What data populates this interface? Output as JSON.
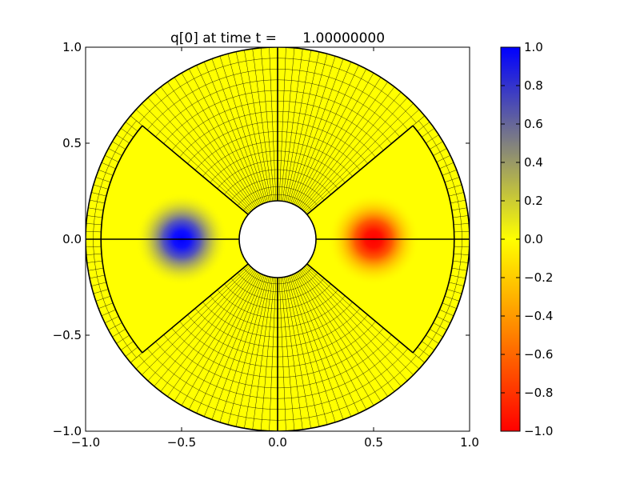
{
  "figure": {
    "title": "q[0] at time t =      1.00000000"
  },
  "chart_data": {
    "type": "heatmap",
    "title": "q[0] at time t =      1.00000000",
    "xlabel": "",
    "ylabel": "",
    "xlim": [
      -1.0,
      1.0
    ],
    "ylim": [
      -1.0,
      1.0
    ],
    "xticks": [
      -1.0,
      -0.5,
      0.0,
      0.5,
      1.0
    ],
    "yticks": [
      -1.0,
      -0.5,
      0.0,
      0.5,
      1.0
    ],
    "xtick_labels": [
      "−1.0",
      "−0.5",
      "0.0",
      "0.5",
      "1.0"
    ],
    "ytick_labels": [
      "−1.0",
      "−0.5",
      "0.0",
      "0.5",
      "1.0"
    ],
    "grid": false,
    "domain": {
      "shape": "annulus",
      "inner_radius": 0.2,
      "outer_radius": 1.0,
      "inner_patch_outer_radius": 0.92,
      "patch_boundary_angles_deg": [
        0,
        90,
        180,
        270
      ],
      "wedge_boundary_angles_deg": [
        40,
        140,
        220,
        320
      ]
    },
    "features": [
      {
        "kind": "gaussian-blob",
        "x": -0.5,
        "y": 0.0,
        "value": 1.0,
        "width": 0.1
      },
      {
        "kind": "gaussian-blob",
        "x": 0.5,
        "y": 0.0,
        "value": -1.0,
        "width": 0.1
      }
    ],
    "background_value": 0.0,
    "colorbar": {
      "min": -1.0,
      "max": 1.0,
      "ticks": [
        1.0,
        0.8,
        0.6,
        0.4,
        0.2,
        0.0,
        -0.2,
        -0.4,
        -0.6,
        -0.8,
        -1.0
      ],
      "tick_labels": [
        "1.0",
        "0.8",
        "0.6",
        "0.4",
        "0.2",
        "0.0",
        "−0.2",
        "−0.4",
        "−0.6",
        "−0.8",
        "−1.0"
      ],
      "colormap": [
        {
          "value": -1.0,
          "color": "#ff0000"
        },
        {
          "value": -0.5,
          "color": "#ff8000"
        },
        {
          "value": 0.0,
          "color": "#ffff00"
        },
        {
          "value": 0.5,
          "color": "#808080"
        },
        {
          "value": 1.0,
          "color": "#0000ff"
        }
      ]
    }
  }
}
